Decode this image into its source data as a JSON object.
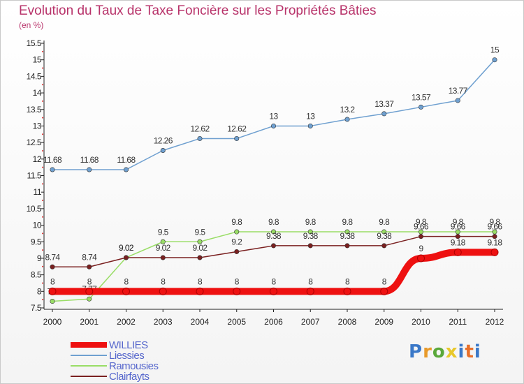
{
  "title": "Evolution du Taux de Taxe Foncière sur les Propriétés Bâties",
  "subtitle": "(en %)",
  "brand": "Proxiti",
  "chart_data": {
    "type": "line",
    "title": "Evolution du Taux de Taxe Foncière sur les Propriétés Bâties",
    "ylabel": "(en %)",
    "x": [
      "2000",
      "2001",
      "2002",
      "2003",
      "2004",
      "2005",
      "2006",
      "2007",
      "2008",
      "2009",
      "2010",
      "2011",
      "2012"
    ],
    "ylim": [
      7.5,
      15.5
    ],
    "yticks": [
      "7.5",
      "8",
      "8.5",
      "9",
      "9.5",
      "10",
      "10.5",
      "11",
      "11.5",
      "12",
      "12.5",
      "13",
      "13.5",
      "14",
      "14.5",
      "15",
      "15.5"
    ],
    "grid": false,
    "legend_position": "bottom-left",
    "series": [
      {
        "name": "WILLIES",
        "color": "#ee1111",
        "values": [
          8,
          8,
          8,
          8,
          8,
          8,
          8,
          8,
          8,
          8,
          9,
          9.18,
          9.18
        ],
        "labels": [
          "8",
          "8",
          "8",
          "8",
          "8",
          "8",
          "8",
          "8",
          "8",
          "8",
          "9",
          "9.18",
          "9.18"
        ]
      },
      {
        "name": "Liessies",
        "color": "#6fa0d0",
        "values": [
          11.68,
          11.68,
          11.68,
          12.26,
          12.62,
          12.62,
          13,
          13,
          13.2,
          13.37,
          13.57,
          13.77,
          15
        ],
        "labels": [
          "11.68",
          "11.68",
          "11.68",
          "12.26",
          "12.62",
          "12.62",
          "13",
          "13",
          "13.2",
          "13.37",
          "13.57",
          "13.77",
          "15"
        ]
      },
      {
        "name": "Ramousies",
        "color": "#99dd66",
        "values": [
          7.7,
          7.77,
          9.02,
          9.5,
          9.5,
          9.8,
          9.8,
          9.8,
          9.8,
          9.8,
          9.8,
          9.8,
          9.8
        ],
        "labels": [
          "7.7",
          "7.77",
          "9.02",
          "9.5",
          "9.5",
          "9.8",
          "9.8",
          "9.8",
          "9.8",
          "9.8",
          "9.8",
          "9.8",
          "9.8"
        ]
      },
      {
        "name": "Clairfayts",
        "color": "#7a2020",
        "values": [
          8.74,
          8.74,
          9.02,
          9.02,
          9.02,
          9.2,
          9.38,
          9.38,
          9.38,
          9.38,
          9.66,
          9.66,
          9.66
        ],
        "labels": [
          "8.74",
          "8.74",
          "9.02",
          "9.02",
          "9.02",
          "9.2",
          "9.38",
          "9.38",
          "9.38",
          "9.38",
          "9.66",
          "9.66",
          "9.66"
        ]
      }
    ]
  }
}
